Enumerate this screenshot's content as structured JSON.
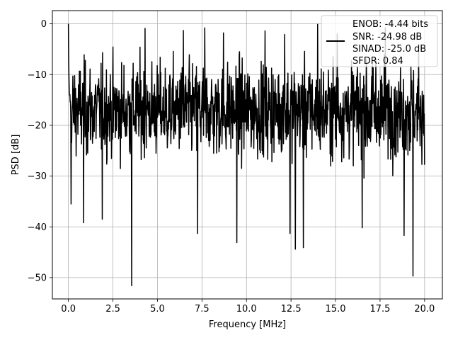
{
  "chart_data": {
    "type": "line",
    "xlabel": "Frequency [MHz]",
    "ylabel": "PSD [dB]",
    "xlim": [
      -0.9,
      21.0
    ],
    "ylim": [
      -54.2,
      2.6
    ],
    "x_ticks": [
      0.0,
      2.5,
      5.0,
      7.5,
      10.0,
      12.5,
      15.0,
      17.5,
      20.0
    ],
    "x_tick_labels": [
      "0.0",
      "2.5",
      "5.0",
      "7.5",
      "10.0",
      "12.5",
      "15.0",
      "17.5",
      "20.0"
    ],
    "y_ticks": [
      0,
      -10,
      -20,
      -30,
      -40,
      -50
    ],
    "y_tick_labels": [
      "0",
      "−10",
      "−20",
      "−30",
      "−40",
      "−50"
    ],
    "grid": true,
    "legend_position": "top-right",
    "legend_entries": [
      "ENOB: -4.44 bits",
      "SNR: -24.98 dB",
      "SINAD: -25.0 dB",
      "SFDR: 0.84"
    ],
    "line_color": "#000000",
    "series": [
      {
        "x_start": 0.0,
        "x_end": 20.0,
        "points": 1200,
        "description_values": {
          "peak_at_0": 0.0,
          "noise_floor_center": -17,
          "noise_max": -3,
          "noise_typical_min": -28
        },
        "deep_dips": [
          {
            "x": 0.15,
            "y": -35.5
          },
          {
            "x": 0.85,
            "y": -39.2
          },
          {
            "x": 1.9,
            "y": -38.5
          },
          {
            "x": 3.55,
            "y": -51.6
          },
          {
            "x": 7.25,
            "y": -41.3
          },
          {
            "x": 9.45,
            "y": -43.1
          },
          {
            "x": 12.45,
            "y": -41.3
          },
          {
            "x": 12.75,
            "y": -44.4
          },
          {
            "x": 13.2,
            "y": -44.1
          },
          {
            "x": 16.5,
            "y": -40.2
          },
          {
            "x": 18.85,
            "y": -41.7
          },
          {
            "x": 19.35,
            "y": -49.7
          }
        ],
        "spikes": [
          {
            "x": 0.0,
            "y": 0.0
          },
          {
            "x": 4.3,
            "y": -0.9
          },
          {
            "x": 6.45,
            "y": -1.3
          },
          {
            "x": 7.65,
            "y": -0.8
          },
          {
            "x": 8.7,
            "y": -1.8
          },
          {
            "x": 11.05,
            "y": -1.4
          },
          {
            "x": 12.15,
            "y": -2.1
          },
          {
            "x": 14.0,
            "y": -0.1
          },
          {
            "x": 17.8,
            "y": -0.8
          },
          {
            "x": 15.1,
            "y": -2.0
          }
        ]
      }
    ]
  }
}
